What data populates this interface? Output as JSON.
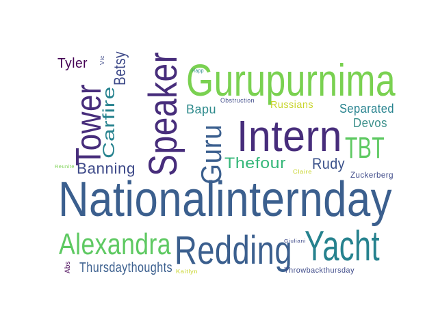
{
  "words": [
    {
      "text": "Nationalinternday",
      "color": "#3b5f8e"
    },
    {
      "text": "Gurupurnima",
      "color": "#7ad151"
    },
    {
      "text": "Speaker",
      "color": "#472d7b"
    },
    {
      "text": "Intern",
      "color": "#472d7b"
    },
    {
      "text": "Redding",
      "color": "#3b5f8e"
    },
    {
      "text": "Yacht",
      "color": "#26828e"
    },
    {
      "text": "Alexandra",
      "color": "#5ec962"
    },
    {
      "text": "Tower",
      "color": "#472d7b"
    },
    {
      "text": "Guru",
      "color": "#3b5f8e"
    },
    {
      "text": "TBT",
      "color": "#5ec962"
    },
    {
      "text": "Carfire",
      "color": "#26828e"
    },
    {
      "text": "Betsy",
      "color": "#3e4a89"
    },
    {
      "text": "Thefour",
      "color": "#35b779"
    },
    {
      "text": "Rudy",
      "color": "#3b528b"
    },
    {
      "text": "Banning",
      "color": "#3e4a89"
    },
    {
      "text": "Thursdaythoughts",
      "color": "#3b5f8e"
    },
    {
      "text": "Separated",
      "color": "#26828e"
    },
    {
      "text": "Devos",
      "color": "#3b8f8a"
    },
    {
      "text": "Russians",
      "color": "#c8d42a"
    },
    {
      "text": "Bapu",
      "color": "#2e8a8c"
    },
    {
      "text": "Tyler",
      "color": "#440154"
    },
    {
      "text": "Zuckerberg",
      "color": "#3e4a89"
    },
    {
      "text": "Throwbackthursday",
      "color": "#3e4a89"
    },
    {
      "text": "Obstruction",
      "color": "#3e4a89"
    },
    {
      "text": "Happ",
      "color": "#2e8a8c"
    },
    {
      "text": "Reunite",
      "color": "#7ad151"
    },
    {
      "text": "Giuliani",
      "color": "#3e4a89"
    },
    {
      "text": "Kaitlyn",
      "color": "#c8d42a"
    },
    {
      "text": "Abs",
      "color": "#440154"
    },
    {
      "text": "Claire",
      "color": "#c8d42a"
    },
    {
      "text": "Vic",
      "color": "#3e4a89"
    }
  ]
}
